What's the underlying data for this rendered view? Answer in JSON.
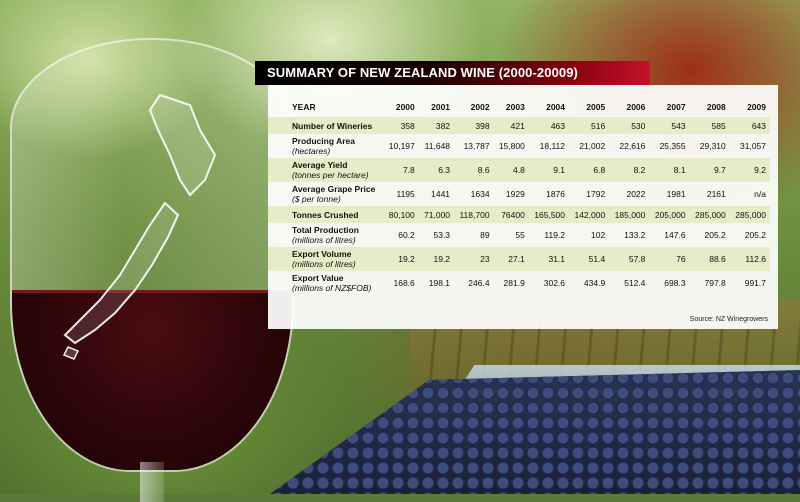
{
  "title": "SUMMARY OF NEW ZEALAND  WINE (2000-20009)",
  "table": {
    "header_label": "YEAR",
    "years": [
      "2000",
      "2001",
      "2002",
      "2003",
      "2004",
      "2005",
      "2006",
      "2007",
      "2008",
      "2009"
    ],
    "rows": [
      {
        "label": "Number of Wineries",
        "sub": "",
        "values": [
          "358",
          "382",
          "398",
          "421",
          "463",
          "516",
          "530",
          "543",
          "585",
          "643"
        ]
      },
      {
        "label": "Producing Area",
        "sub": "(hectares)",
        "values": [
          "10,197",
          "11,648",
          "13,787",
          "15,800",
          "18,112",
          "21,002",
          "22,616",
          "25,355",
          "29,310",
          "31,057"
        ]
      },
      {
        "label": "Average Yield",
        "sub": "(tonnes per hectare)",
        "values": [
          "7.8",
          "6.3",
          "8.6",
          "4.8",
          "9.1",
          "6.8",
          "8.2",
          "8.1",
          "9.7",
          "9.2"
        ]
      },
      {
        "label": "Average Grape Price",
        "sub": "($ per tonne)",
        "values": [
          "1195",
          "1441",
          "1634",
          "1929",
          "1876",
          "1792",
          "2022",
          "1981",
          "2161",
          "n/a"
        ]
      },
      {
        "label": "Tonnes Crushed",
        "sub": "",
        "values": [
          "80,100",
          "71,000",
          "118,700",
          "76400",
          "165,500",
          "142,000",
          "185,000",
          "205,000",
          "285,000",
          "285,000"
        ]
      },
      {
        "label": "Total Production",
        "sub": "(millions of litres)",
        "values": [
          "60.2",
          "53.3",
          "89",
          "55",
          "119.2",
          "102",
          "133.2",
          "147.6",
          "205.2",
          "205.2"
        ]
      },
      {
        "label": "Export Volume",
        "sub": "(millions of litres)",
        "values": [
          "19.2",
          "19.2",
          "23",
          "27.1",
          "31.1",
          "51.4",
          "57.8",
          "76",
          "88.6",
          "112.6"
        ]
      },
      {
        "label": "Export Value",
        "sub": "(millions of NZ$FOB)",
        "values": [
          "168.6",
          "198.1",
          "246.4",
          "281.9",
          "302.6",
          "434.9",
          "512.4",
          "698.3",
          "797.8",
          "991.7"
        ]
      }
    ]
  },
  "source": "Source: NZ Winegrowers",
  "colors": {
    "shaded_row": "#e6ecc8",
    "banner_accent": "#c4122a",
    "wine": "#2a0508"
  }
}
